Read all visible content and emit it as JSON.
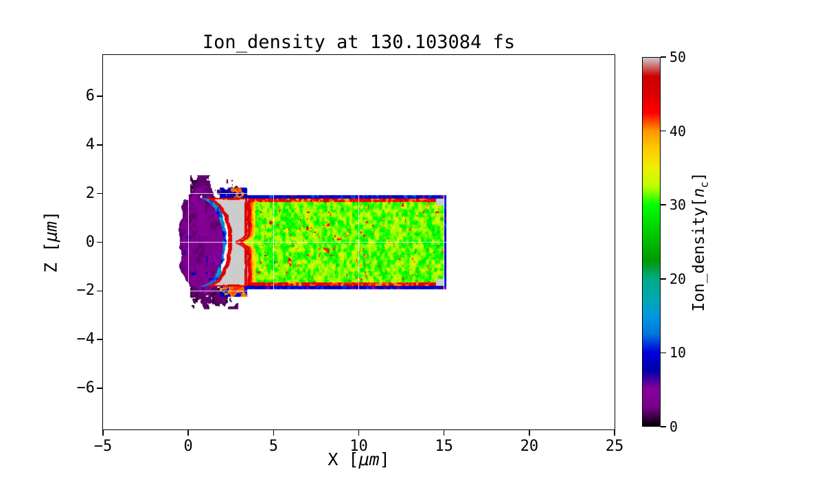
{
  "figure": {
    "title": "Ion_density at 130.103084 fs"
  },
  "labels": {
    "x_pre": "X [",
    "x_unit": "μm",
    "x_post": "]",
    "y_pre": "Z [",
    "y_unit": "μm",
    "y_post": "]",
    "cbar_pre": "Ion_density[",
    "cbar_var": "n",
    "cbar_sub": "c",
    "cbar_post": "]"
  },
  "chart_data": {
    "type": "heatmap",
    "title": "Ion_density at 130.103084 fs",
    "time_fs": 130.103084,
    "xlabel": "X [μm]",
    "ylabel": "Z [μm]",
    "xlim": [
      -5,
      25
    ],
    "ylim": [
      -7.7,
      7.7
    ],
    "xticks": [
      -5,
      0,
      5,
      10,
      15,
      20,
      25
    ],
    "xtick_labels": [
      "−5",
      "0",
      "5",
      "10",
      "15",
      "20",
      "25"
    ],
    "yticks": [
      6,
      4,
      2,
      0,
      -2,
      -4,
      -6
    ],
    "ytick_labels": [
      "6",
      "4",
      "2",
      "0",
      "−2",
      "−4",
      "−6"
    ],
    "grid": true,
    "colorbar": {
      "label": "Ion_density[n_c]",
      "ticks": [
        0,
        10,
        20,
        30,
        40,
        50
      ],
      "tick_labels": [
        "0",
        "10",
        "20",
        "30",
        "40",
        "50"
      ],
      "vmin": 0,
      "vmax": 50,
      "colormap": "nipy_spectral"
    },
    "features": {
      "target_slab": {
        "x": [
          3.45,
          15.0
        ],
        "z": [
          -1.8,
          1.8
        ],
        "density_mean": 30,
        "density_fluct": 5,
        "edge_density": 43,
        "right_cap_density": 50
      },
      "ablation_front": {
        "shape": "crescent",
        "center": [
          0.85,
          0.0
        ],
        "inner_ellipse": [
          1.52,
          1.82
        ],
        "z_extent": [
          -1.87,
          1.87
        ],
        "saturated_density": 50,
        "rim_density": 43,
        "on_axis_notch_depth": 0.55
      },
      "plume": {
        "outer_ellipse_center": [
          0.85,
          0.0
        ],
        "outer_ellipse_radii": [
          1.38,
          2.42
        ],
        "density_range": [
          0,
          7
        ],
        "has_voids": true
      },
      "top_bottom_caps": {
        "z_extent": [
          1.75,
          2.75
        ],
        "x_extent": [
          0.1,
          2.95
        ],
        "density_range": [
          0.8,
          4
        ]
      },
      "boundary_line_density_range": [
        3,
        14
      ],
      "contour_threshold": 0.5
    }
  },
  "colormap_stops": [
    [
      0.0,
      0,
      0,
      0
    ],
    [
      0.05,
      119,
      0,
      136
    ],
    [
      0.1,
      136,
      0,
      153
    ],
    [
      0.15,
      0,
      0,
      170
    ],
    [
      0.2,
      0,
      0,
      221
    ],
    [
      0.25,
      0,
      119,
      221
    ],
    [
      0.3,
      0,
      153,
      221
    ],
    [
      0.35,
      0,
      170,
      170
    ],
    [
      0.4,
      0,
      170,
      136
    ],
    [
      0.45,
      0,
      153,
      0
    ],
    [
      0.5,
      0,
      187,
      0
    ],
    [
      0.55,
      0,
      221,
      0
    ],
    [
      0.6,
      0,
      255,
      0
    ],
    [
      0.65,
      187,
      255,
      0
    ],
    [
      0.7,
      238,
      238,
      0
    ],
    [
      0.75,
      255,
      204,
      0
    ],
    [
      0.8,
      255,
      153,
      0
    ],
    [
      0.85,
      255,
      0,
      0
    ],
    [
      0.9,
      221,
      0,
      0
    ],
    [
      0.95,
      204,
      0,
      0
    ],
    [
      1.0,
      204,
      204,
      204
    ]
  ]
}
